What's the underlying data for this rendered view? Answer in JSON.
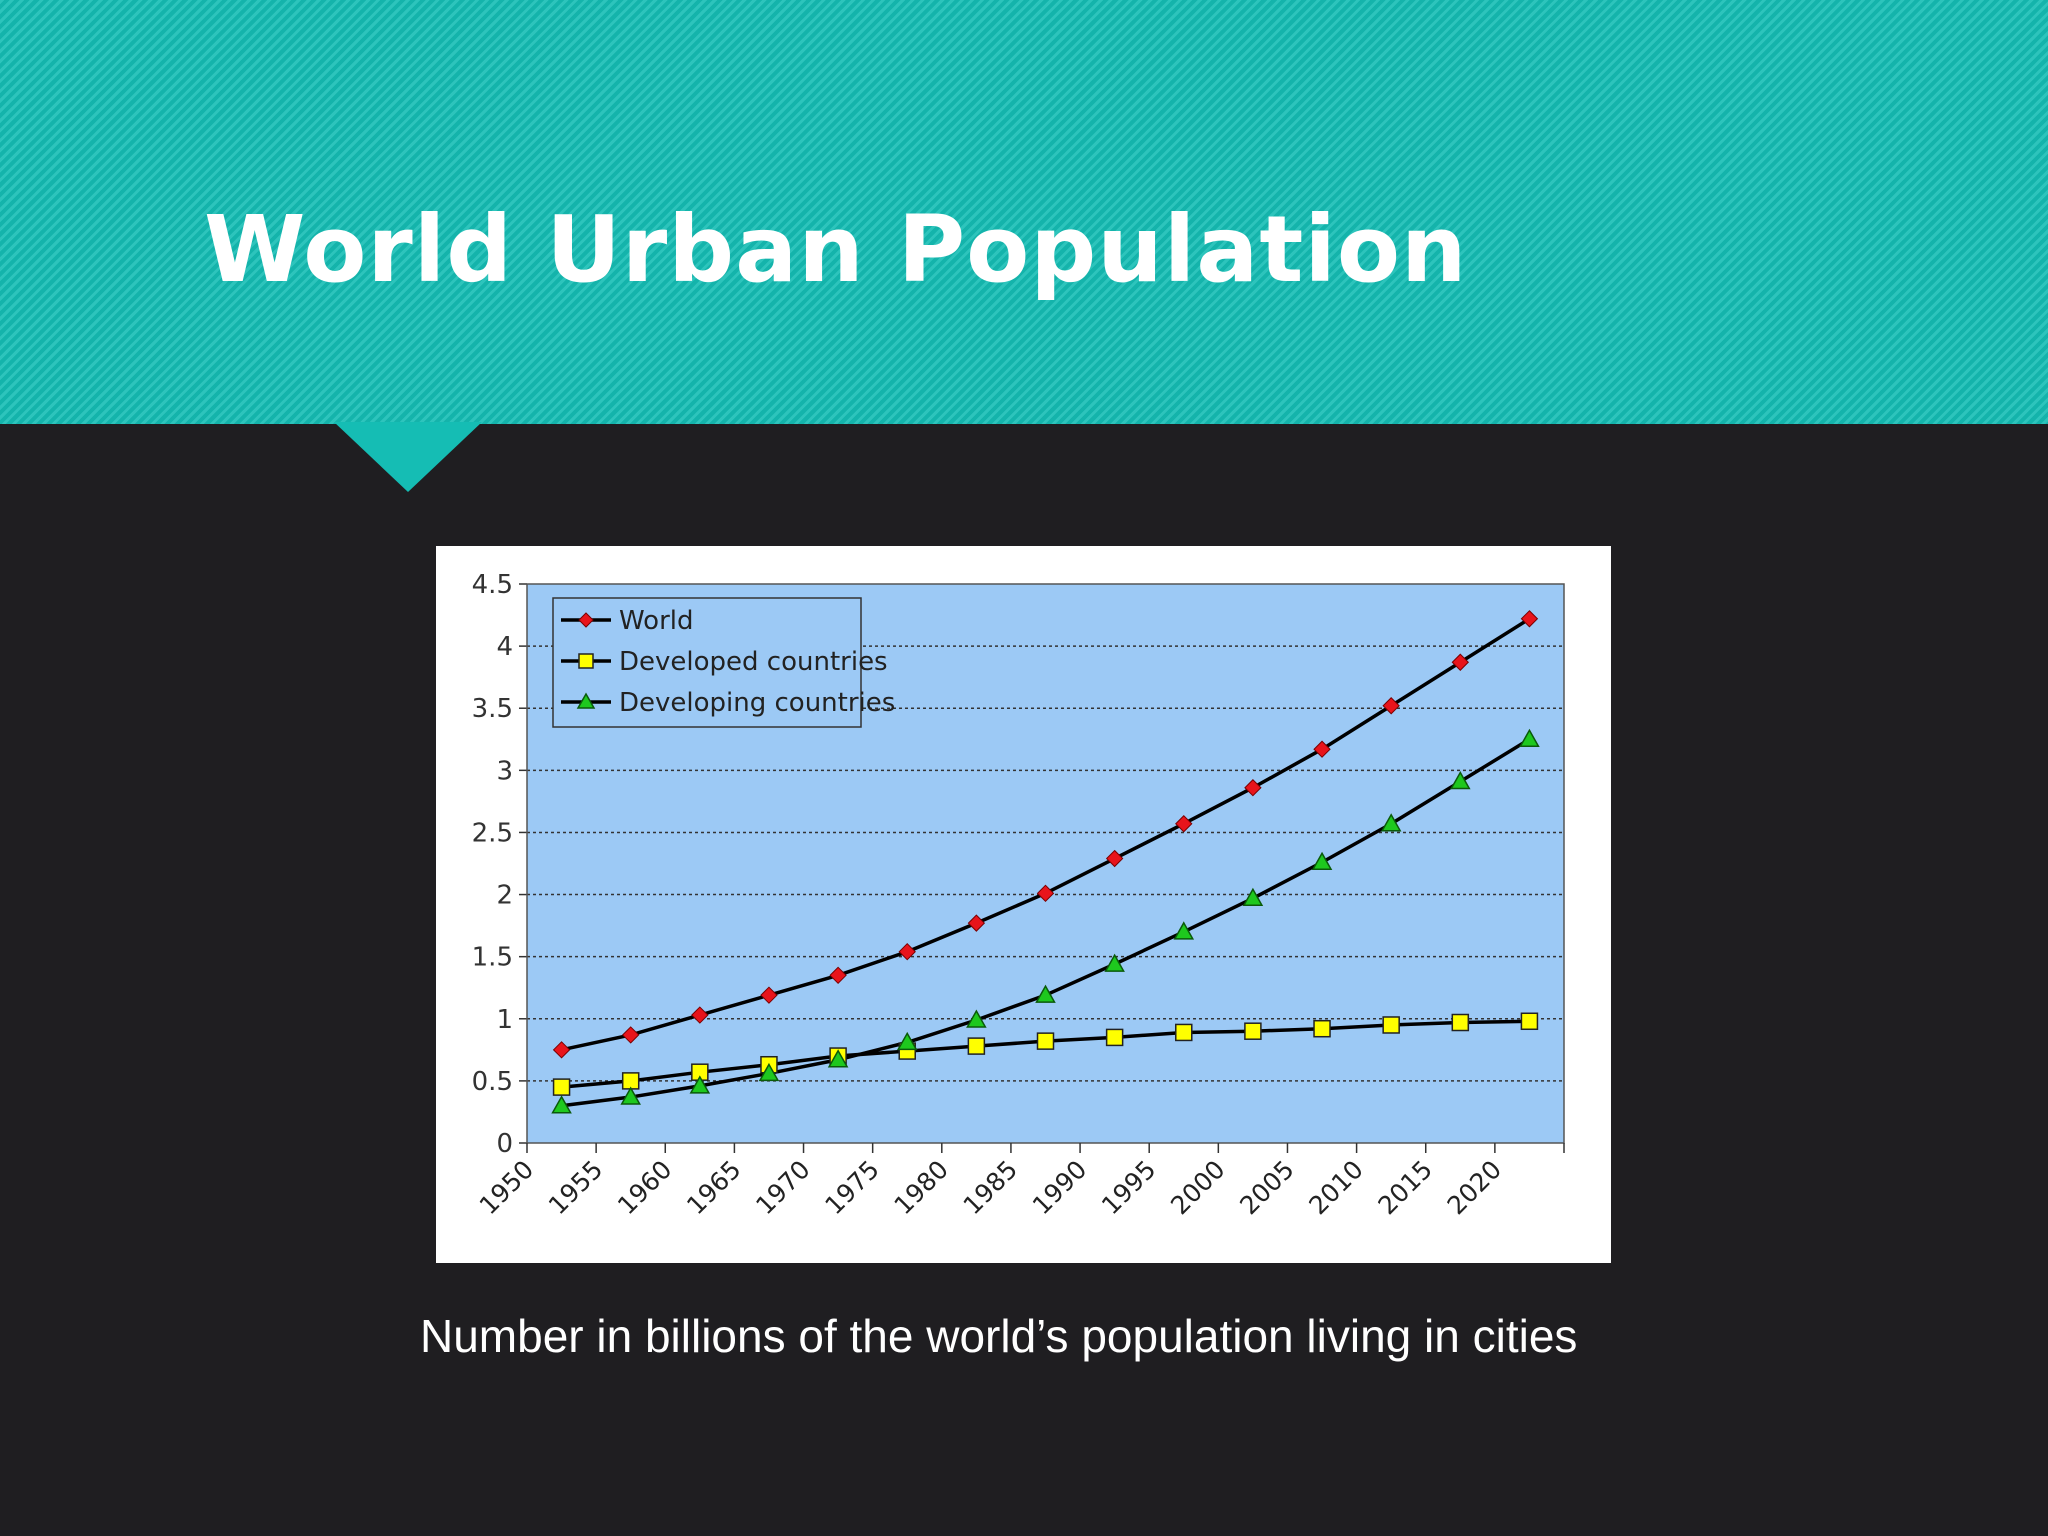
{
  "slide": {
    "title": "World Urban Population",
    "caption": "Number in billions of the world’s population living in cities"
  },
  "colors": {
    "banner": "#15bdb4",
    "background": "#1f1e21",
    "plot_area": "#9cc9f5"
  },
  "chart_data": {
    "type": "line",
    "title": "",
    "xlabel": "",
    "ylabel": "",
    "ylim": [
      0,
      4.5
    ],
    "yticks": [
      "0",
      "0.5",
      "1",
      "1.5",
      "2",
      "2.5",
      "3",
      "3.5",
      "4",
      "4.5"
    ],
    "categories": [
      "1950",
      "1955",
      "1960",
      "1965",
      "1970",
      "1975",
      "1980",
      "1985",
      "1990",
      "1995",
      "2000",
      "2005",
      "2010",
      "2015",
      "2020"
    ],
    "grid": "horizontal dotted",
    "legend_position": "top-left",
    "series": [
      {
        "name": "World",
        "marker": "diamond",
        "color": "#e8141b",
        "values": [
          0.75,
          0.87,
          1.03,
          1.19,
          1.35,
          1.54,
          1.77,
          2.01,
          2.29,
          2.57,
          2.86,
          3.17,
          3.52,
          3.87,
          4.22
        ]
      },
      {
        "name": "Developed countries",
        "marker": "square",
        "color": "#ffff00",
        "values": [
          0.45,
          0.5,
          0.57,
          0.63,
          0.7,
          0.74,
          0.78,
          0.82,
          0.85,
          0.89,
          0.9,
          0.92,
          0.95,
          0.97,
          0.98
        ]
      },
      {
        "name": "Developing countries",
        "marker": "triangle",
        "color": "#1ec81e",
        "values": [
          0.3,
          0.37,
          0.46,
          0.56,
          0.67,
          0.81,
          0.99,
          1.19,
          1.44,
          1.7,
          1.97,
          2.26,
          2.57,
          2.91,
          3.25
        ]
      }
    ]
  }
}
